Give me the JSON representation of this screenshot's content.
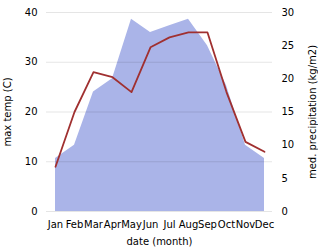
{
  "chart_data": {
    "type": "line",
    "xlabel": "date (month)",
    "ylabel": "max temp (C)",
    "y2label": "med. precipitation (kg/m2)",
    "categories": [
      "Jan",
      "Feb",
      "Mar",
      "Apr",
      "May",
      "Jun",
      "Jul",
      "Aug",
      "Sep",
      "Oct",
      "Nov",
      "Dec"
    ],
    "series": [
      {
        "type": "area",
        "axis": "y2",
        "color": "#aab4e8",
        "values": [
          8,
          10,
          18,
          20,
          29,
          27,
          28,
          29,
          25,
          19,
          10,
          8
        ]
      },
      {
        "type": "line",
        "axis": "y",
        "color": "#a03030",
        "values": [
          9,
          20,
          28,
          27,
          24,
          33,
          35,
          36,
          36,
          24,
          14,
          12
        ]
      }
    ],
    "ylim": [
      0,
      40
    ],
    "yticks": [
      0,
      10,
      20,
      30,
      40
    ],
    "y2lim": [
      0,
      30
    ],
    "y2ticks": [
      0,
      5,
      10,
      15,
      20,
      25,
      30
    ],
    "grid": true
  }
}
